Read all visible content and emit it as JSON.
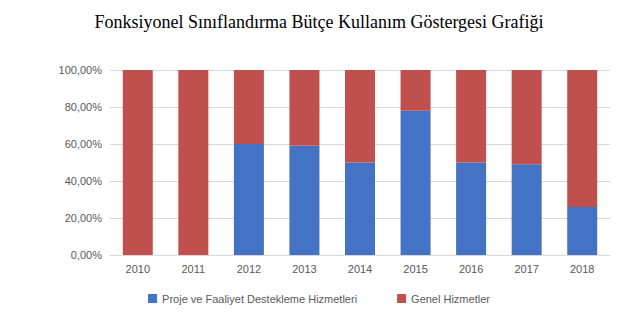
{
  "chart_data": {
    "type": "bar",
    "title": "Fonksiyonel Sınıflandırma Bütçe Kullanım Göstergesi Grafiği",
    "categories": [
      "2010",
      "2011",
      "2012",
      "2013",
      "2014",
      "2015",
      "2016",
      "2017",
      "2018"
    ],
    "series": [
      {
        "name": "Proje ve Faaliyet Destekleme Hizmetleri",
        "color": "#4472c4",
        "values": [
          0,
          0,
          60,
          59,
          50,
          78,
          50,
          49,
          26
        ]
      },
      {
        "name": "Genel Hizmetler",
        "color": "#c0504d",
        "values": [
          100,
          100,
          40,
          41,
          50,
          22,
          50,
          51,
          74
        ]
      }
    ],
    "stacked": true,
    "ylim": [
      0,
      100
    ],
    "yticks": [
      {
        "value": 0,
        "label": "0,00%"
      },
      {
        "value": 20,
        "label": "20,00%"
      },
      {
        "value": 40,
        "label": "40,00%"
      },
      {
        "value": 60,
        "label": "60,00%"
      },
      {
        "value": 80,
        "label": "80,00%"
      },
      {
        "value": 100,
        "label": "100,00%"
      }
    ],
    "grid": true,
    "legend": "bottom"
  }
}
